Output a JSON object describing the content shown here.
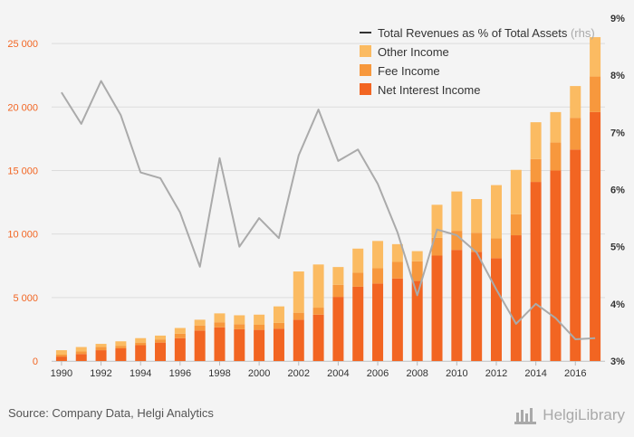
{
  "chart_data": {
    "type": "bar",
    "stacked": true,
    "x": [
      1990,
      1991,
      1992,
      1993,
      1994,
      1995,
      1996,
      1997,
      1998,
      1999,
      2000,
      2001,
      2002,
      2003,
      2004,
      2005,
      2006,
      2007,
      2008,
      2009,
      2010,
      2011,
      2012,
      2013,
      2014,
      2015,
      2016,
      2017
    ],
    "x_tick_labels": [
      "1990",
      "1992",
      "1994",
      "1996",
      "1998",
      "2000",
      "2002",
      "2004",
      "2006",
      "2008",
      "2010",
      "2012",
      "2014",
      "2016"
    ],
    "series": [
      {
        "name": "Net Interest Income",
        "type": "bar",
        "color": "#f26522",
        "values": [
          350,
          550,
          850,
          1000,
          1250,
          1450,
          1800,
          2400,
          2650,
          2500,
          2450,
          2550,
          3250,
          3650,
          5050,
          5850,
          6100,
          6500,
          6300,
          8300,
          8750,
          8600,
          8100,
          9900,
          14100,
          15000,
          16650,
          19600
        ]
      },
      {
        "name": "Fee Income",
        "type": "bar",
        "color": "#f7983d",
        "values": [
          150,
          200,
          250,
          200,
          200,
          250,
          350,
          400,
          400,
          400,
          400,
          450,
          550,
          550,
          950,
          1100,
          1200,
          1300,
          1550,
          1400,
          1500,
          1500,
          1550,
          1650,
          1800,
          2200,
          2500,
          2800
        ]
      },
      {
        "name": "Other Income",
        "type": "bar",
        "color": "#fbbb62",
        "values": [
          350,
          350,
          250,
          350,
          350,
          300,
          450,
          450,
          700,
          700,
          800,
          1300,
          3250,
          3400,
          1400,
          1900,
          2150,
          1400,
          800,
          2600,
          3100,
          2650,
          4200,
          3500,
          2900,
          2400,
          2500,
          3100
        ]
      },
      {
        "name": "Total Revenues as % of Total Assets",
        "type": "line",
        "axis": "right",
        "color": "#aaaaaa",
        "values": [
          7.7,
          7.15,
          7.9,
          7.3,
          6.3,
          6.2,
          5.6,
          4.65,
          6.55,
          5.0,
          5.5,
          5.15,
          6.6,
          7.4,
          6.5,
          6.7,
          6.1,
          5.25,
          4.15,
          5.3,
          5.2,
          4.9,
          4.25,
          3.65,
          4.0,
          3.75,
          3.38,
          3.4
        ]
      }
    ],
    "y_left": {
      "ylim": [
        0,
        27000
      ],
      "ticks": [
        0,
        5000,
        10000,
        15000,
        20000,
        25000
      ],
      "tick_labels": [
        "0",
        "5 000",
        "10 000",
        "15 000",
        "20 000",
        "25 000"
      ],
      "color": "#f26522"
    },
    "y_right": {
      "ylim": [
        3,
        9
      ],
      "ticks": [
        3,
        4,
        5,
        6,
        7,
        8,
        9
      ],
      "tick_labels": [
        "3%",
        "4%",
        "5%",
        "6%",
        "7%",
        "8%",
        "9%"
      ]
    },
    "legend": {
      "placement": "top-right",
      "items": [
        {
          "label": "Total Revenues as % of Total Assets",
          "suffix": "(rhs)",
          "kind": "line",
          "color": "#333333"
        },
        {
          "label": "Other Income",
          "kind": "box",
          "color": "#fbbb62"
        },
        {
          "label": "Fee Income",
          "kind": "box",
          "color": "#f7983d"
        },
        {
          "label": "Net Interest Income",
          "kind": "box",
          "color": "#f26522"
        }
      ]
    },
    "grid": true
  },
  "footer": {
    "source": "Source: Company Data, Helgi Analytics",
    "brand": "HelgiLibrary"
  }
}
